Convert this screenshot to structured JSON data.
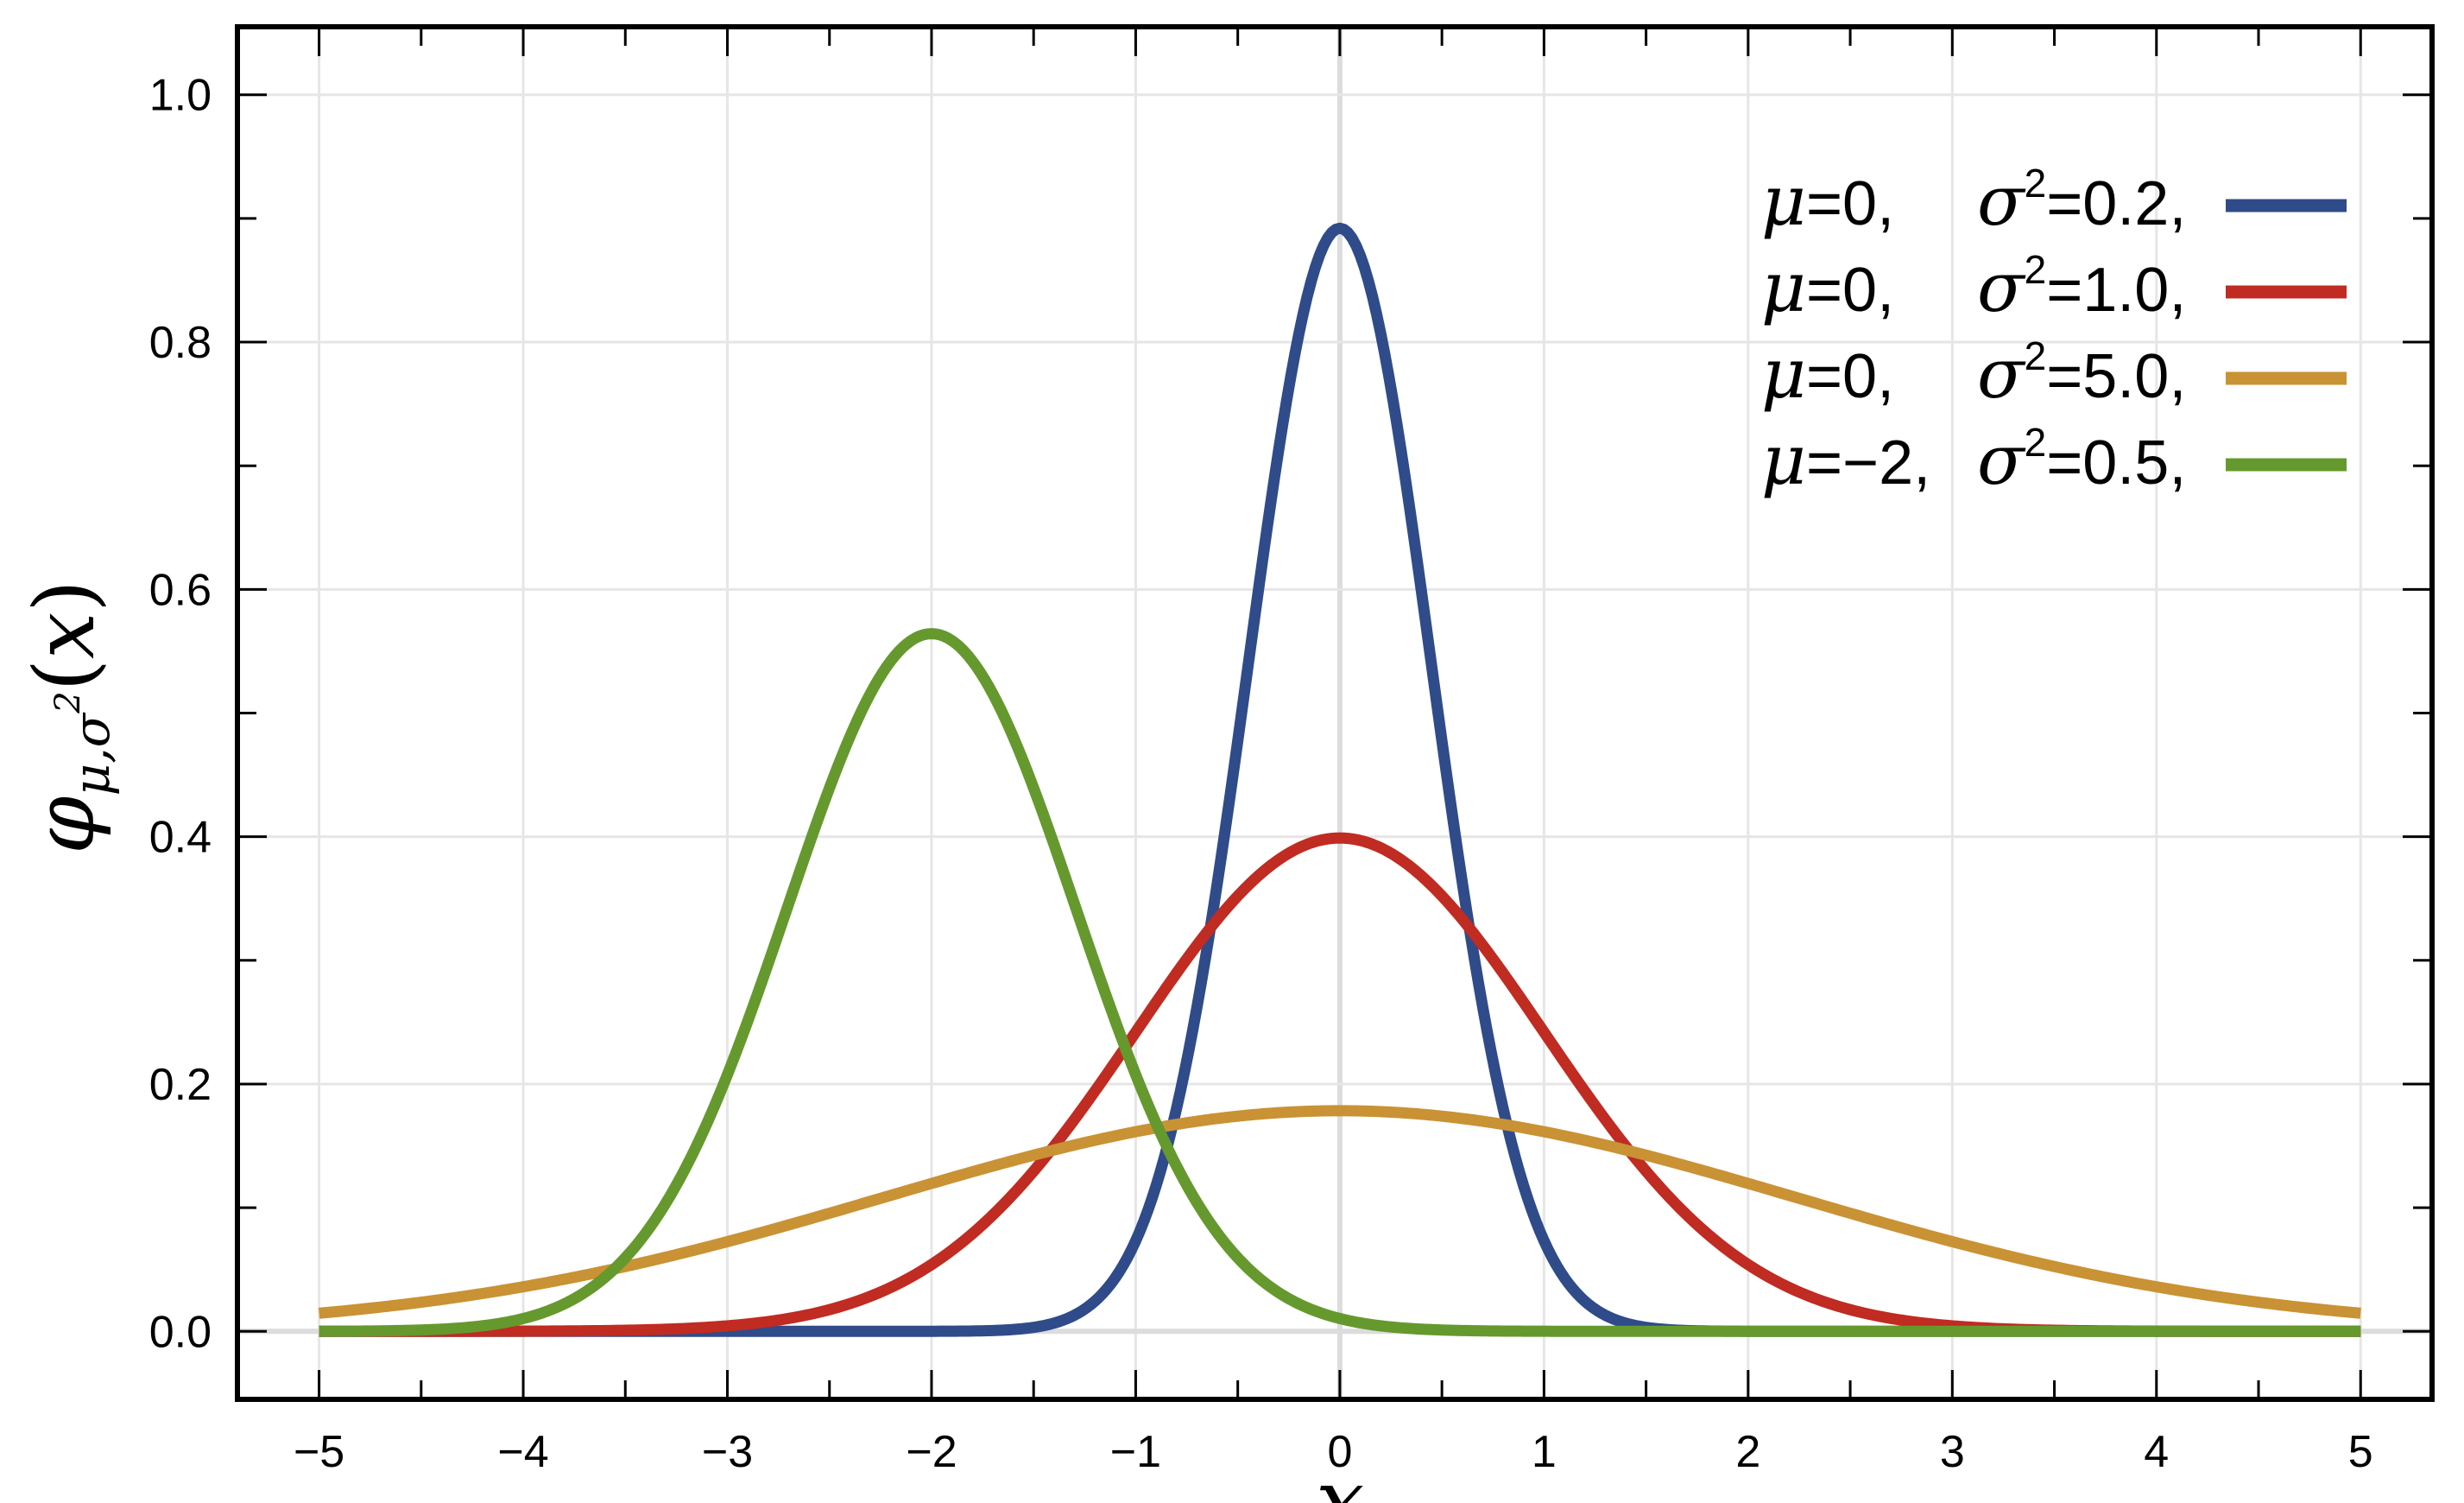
{
  "chart_data": {
    "type": "line",
    "xlabel": "x",
    "ylabel": {
      "symbol": "φ",
      "subscript": "μ,σ",
      "superscript": "2",
      "argument_open": "(",
      "argument": "x",
      "argument_close": ")"
    },
    "xlim": [
      -5.4,
      5.35
    ],
    "ylim": [
      -0.055,
      1.055
    ],
    "xticks": [
      -5,
      -4,
      -3,
      -2,
      -1,
      0,
      1,
      2,
      3,
      4,
      5
    ],
    "xtick_labels": [
      "−5",
      "−4",
      "−3",
      "−2",
      "−1",
      "0",
      "1",
      "2",
      "3",
      "4",
      "5"
    ],
    "yticks": [
      0.0,
      0.2,
      0.4,
      0.6,
      0.8,
      1.0
    ],
    "ytick_labels": [
      "0.0",
      "0.2",
      "0.4",
      "0.6",
      "0.8",
      "1.0"
    ],
    "grid": true,
    "legend_position": "top-right",
    "x_range": [
      -5,
      5
    ],
    "series": [
      {
        "mu": 0,
        "sigma2": 0.2,
        "mu_label": "0,",
        "sigma2_label": "0.2,",
        "color": "#2f4b8a",
        "peak": 0.892
      },
      {
        "mu": 0,
        "sigma2": 1.0,
        "mu_label": "0,",
        "sigma2_label": "1.0,",
        "color": "#c02b22",
        "peak": 0.399
      },
      {
        "mu": 0,
        "sigma2": 5.0,
        "mu_label": "0,",
        "sigma2_label": "5.0,",
        "color": "#c99234",
        "peak": 0.178
      },
      {
        "mu": -2,
        "sigma2": 0.5,
        "mu_label": "−2,",
        "sigma2_label": "0.5,",
        "color": "#65992e",
        "peak": 0.564
      }
    ],
    "legend_symbols": {
      "mu": "μ",
      "sigma": "σ",
      "equals": "=",
      "squared": "2"
    }
  }
}
